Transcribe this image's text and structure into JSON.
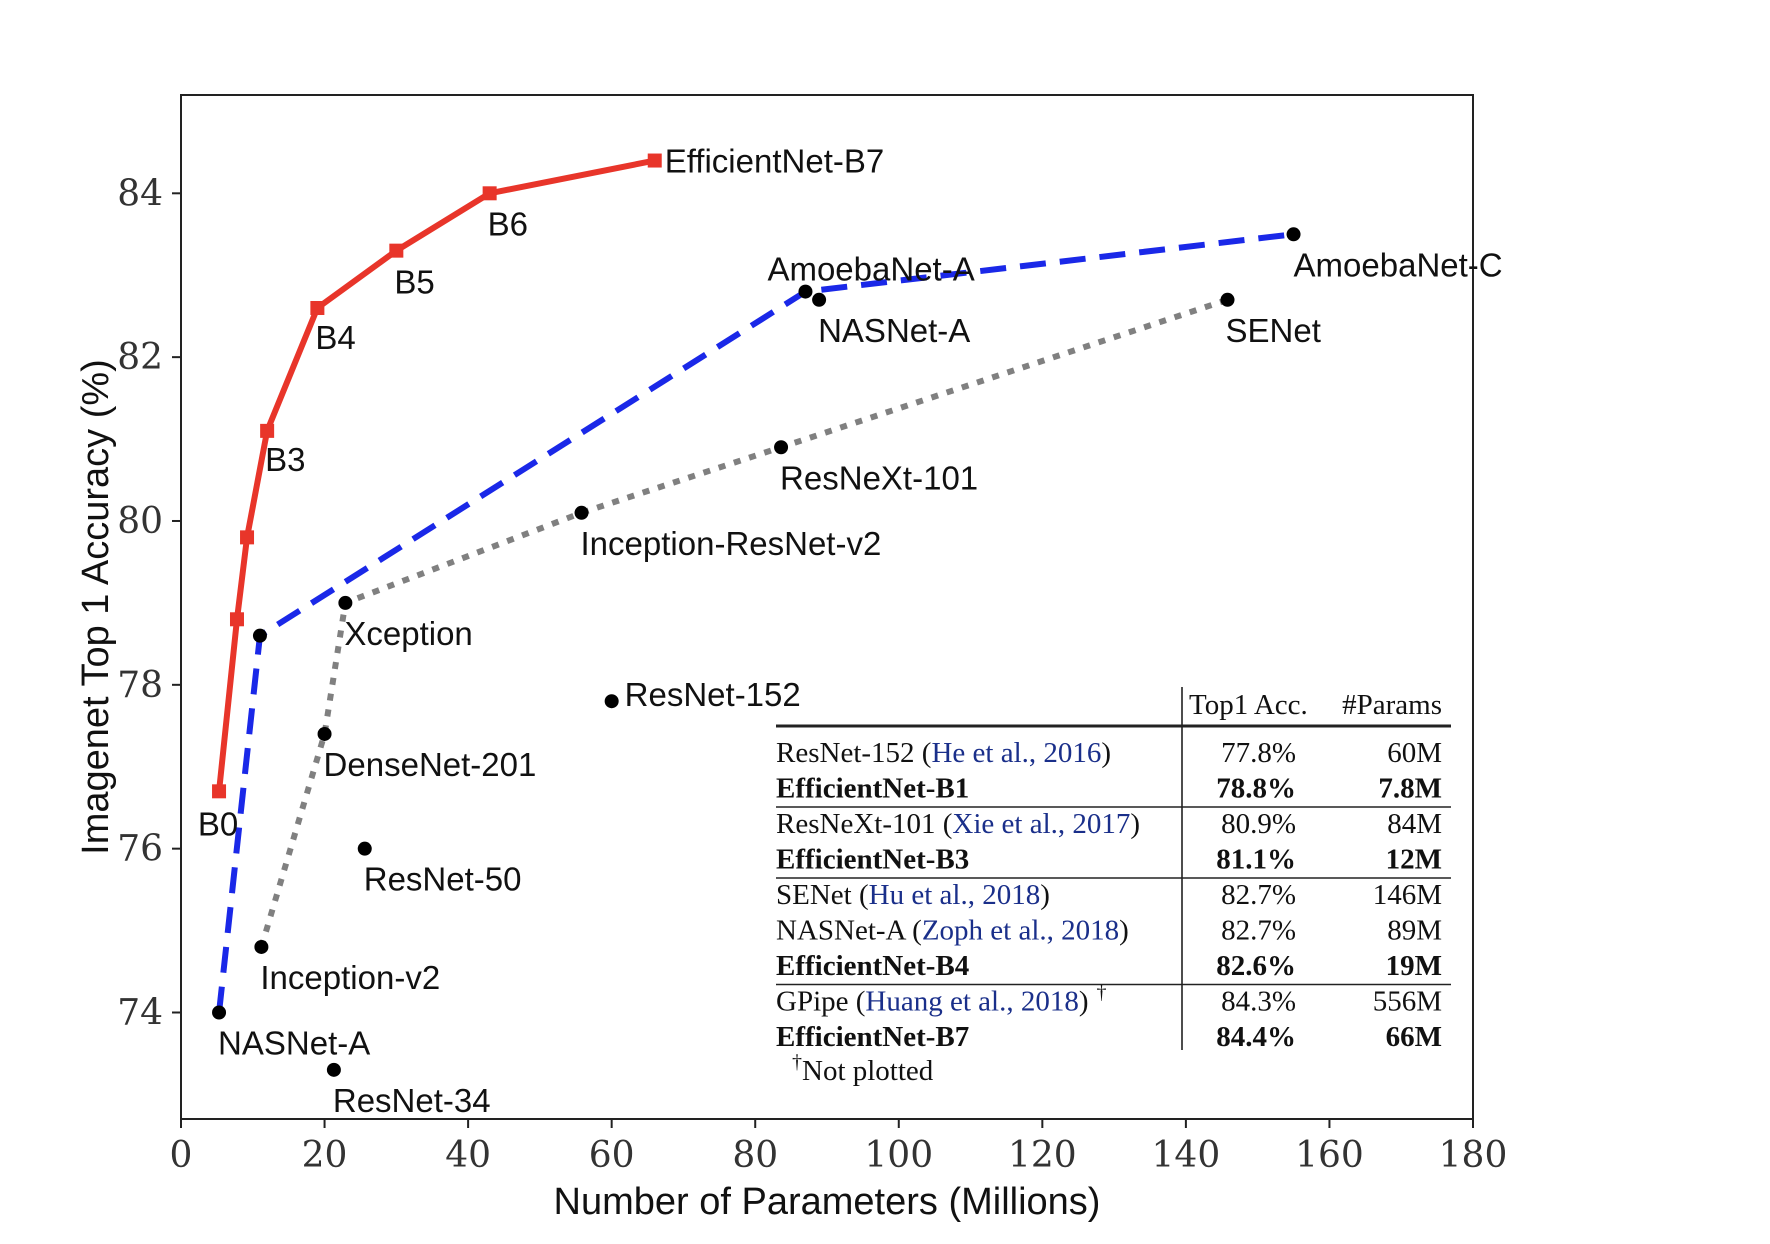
{
  "chart_data": {
    "type": "scatter",
    "title": "",
    "xlabel": "Number of Parameters (Millions)",
    "ylabel": "Imagenet Top 1 Accuracy (%)",
    "xlim": [
      0,
      180
    ],
    "ylim": [
      72.7,
      85.2
    ],
    "xticks": [
      0,
      20,
      40,
      60,
      80,
      100,
      120,
      140,
      160,
      180
    ],
    "yticks": [
      74,
      76,
      78,
      80,
      82,
      84
    ],
    "grid": false,
    "series": [
      {
        "style": "solid",
        "color": "#e8352a",
        "marker": "square",
        "points": [
          {
            "x": 5.3,
            "y": 76.7,
            "label": "B0"
          },
          {
            "x": 7.8,
            "y": 78.8,
            "label": ""
          },
          {
            "x": 9.2,
            "y": 79.8,
            "label": ""
          },
          {
            "x": 12,
            "y": 81.1,
            "label": "B3"
          },
          {
            "x": 19,
            "y": 82.6,
            "label": "B4"
          },
          {
            "x": 30,
            "y": 83.3,
            "label": "B5"
          },
          {
            "x": 43,
            "y": 84.0,
            "label": "B6"
          },
          {
            "x": 66,
            "y": 84.4,
            "label": "EfficientNet-B7"
          }
        ]
      },
      {
        "style": "dashed",
        "color": "#1a28e8",
        "marker": "circle",
        "points": [
          {
            "x": 5.3,
            "y": 74.0,
            "label": "NASNet-A"
          },
          {
            "x": 11,
            "y": 78.6,
            "label": ""
          },
          {
            "x": 87,
            "y": 82.8,
            "label": "AmoebaNet-A"
          },
          {
            "x": 155,
            "y": 83.5,
            "label": "AmoebaNet-C"
          }
        ]
      },
      {
        "style": "dotted",
        "color": "#808080",
        "marker": "circle",
        "points": [
          {
            "x": 11.2,
            "y": 74.8,
            "label": "Inception-v2"
          },
          {
            "x": 20,
            "y": 77.4,
            "label": "DenseNet-201"
          },
          {
            "x": 22.9,
            "y": 79.0,
            "label": "Xception"
          },
          {
            "x": 55.8,
            "y": 80.1,
            "label": "Inception-ResNet-v2"
          },
          {
            "x": 83.6,
            "y": 80.9,
            "label": "ResNeXt-101"
          },
          {
            "x": 145.8,
            "y": 82.7,
            "label": "SENet"
          }
        ]
      },
      {
        "style": "none",
        "color": "#000000",
        "marker": "circle",
        "points": [
          {
            "x": 88.9,
            "y": 82.7,
            "label": "NASNet-A"
          },
          {
            "x": 60,
            "y": 77.8,
            "label": "ResNet-152"
          },
          {
            "x": 25.6,
            "y": 76.0,
            "label": "ResNet-50"
          },
          {
            "x": 21.3,
            "y": 73.3,
            "label": "ResNet-34"
          }
        ]
      }
    ],
    "table": {
      "headers": [
        "",
        "Top1 Acc.",
        "#Params"
      ],
      "groups": [
        [
          {
            "model": "ResNet-152",
            "cite": "He et al., 2016",
            "acc": "77.8%",
            "params": "60M",
            "bold": false
          },
          {
            "model": "EfficientNet-B1",
            "cite": "",
            "acc": "78.8%",
            "params": "7.8M",
            "bold": true
          }
        ],
        [
          {
            "model": "ResNeXt-101",
            "cite": "Xie et al., 2017",
            "acc": "80.9%",
            "params": "84M",
            "bold": false
          },
          {
            "model": "EfficientNet-B3",
            "cite": "",
            "acc": "81.1%",
            "params": "12M",
            "bold": true
          }
        ],
        [
          {
            "model": "SENet",
            "cite": "Hu et al., 2018",
            "acc": "82.7%",
            "params": "146M",
            "bold": false
          },
          {
            "model": "NASNet-A",
            "cite": "Zoph et al., 2018",
            "acc": "82.7%",
            "params": "89M",
            "bold": false
          },
          {
            "model": "EfficientNet-B4",
            "cite": "",
            "acc": "82.6%",
            "params": "19M",
            "bold": true
          }
        ],
        [
          {
            "model": "GPipe",
            "cite": "Huang et al., 2018",
            "dagger": "†",
            "acc": "84.3%",
            "params": "556M",
            "bold": false
          },
          {
            "model": "EfficientNet-B7",
            "cite": "",
            "acc": "84.4%",
            "params": "66M",
            "bold": true
          }
        ]
      ],
      "footnote_mark": "†",
      "footnote": "Not plotted"
    }
  }
}
